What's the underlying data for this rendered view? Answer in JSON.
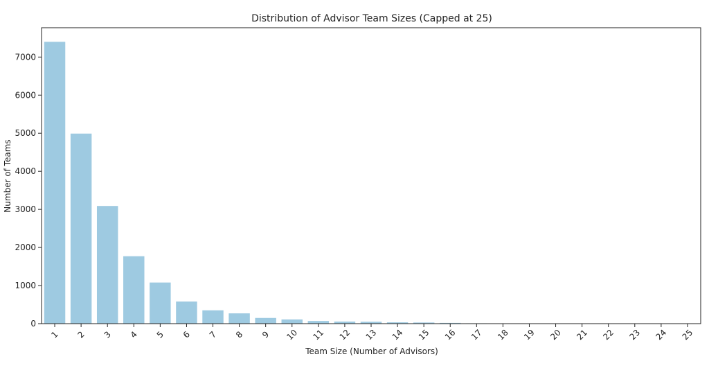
{
  "chart_data": {
    "type": "bar",
    "title": "Distribution of Advisor Team Sizes (Capped at 25)",
    "xlabel": "Team Size (Number of Advisors)",
    "ylabel": "Number of Teams",
    "categories": [
      "1",
      "2",
      "3",
      "4",
      "5",
      "6",
      "7",
      "8",
      "9",
      "10",
      "11",
      "12",
      "13",
      "14",
      "15",
      "16",
      "17",
      "18",
      "19",
      "20",
      "21",
      "22",
      "23",
      "24",
      "25"
    ],
    "values": [
      7400,
      4990,
      3090,
      1770,
      1080,
      580,
      350,
      270,
      150,
      110,
      70,
      55,
      50,
      35,
      30,
      20,
      10,
      8,
      6,
      5,
      4,
      3,
      3,
      2,
      2
    ],
    "ylim": [
      0,
      7770
    ],
    "yticks": [
      0,
      1000,
      2000,
      3000,
      4000,
      5000,
      6000,
      7000
    ],
    "grid": false,
    "bar_color": "#9ecae1",
    "axis_color": "#222222"
  }
}
